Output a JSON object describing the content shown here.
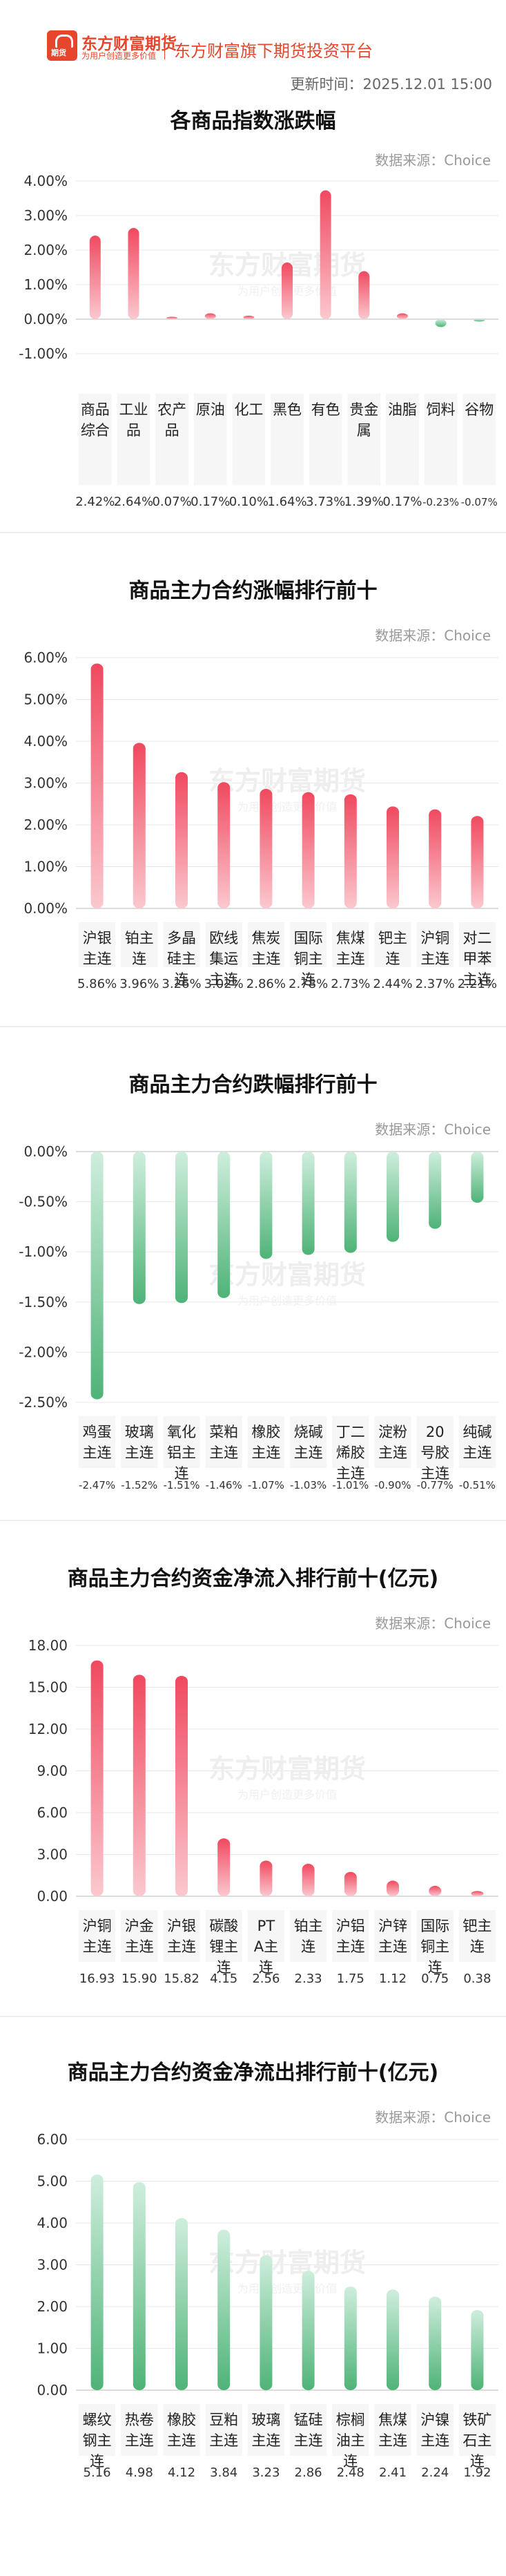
{
  "header": {
    "logo_name": "东方财富期货",
    "logo_sub": "为用户创造更多价值",
    "logo_badge": "期货",
    "platform": "东方财富旗下期货投资平台",
    "updated": "更新时间：2025.12.01 15:00"
  },
  "watermark": {
    "name": "东方财富期货",
    "sub": "为用户创造更多价值"
  },
  "colors": {
    "brand": "#e8462c",
    "up": "#f0495f",
    "down": "#4fb377",
    "grid": "#e8e8e8"
  },
  "charts": [
    {
      "title": "各商品指数涨跌幅",
      "source": "数据来源：Choice",
      "chart_data": {
        "type": "bar",
        "categories": [
          "商品综合",
          "工业品",
          "农产品",
          "原油",
          "化工",
          "黑色",
          "有色",
          "贵金属",
          "油脂",
          "饲料",
          "谷物"
        ],
        "values": [
          2.42,
          2.64,
          0.07,
          0.17,
          0.1,
          1.64,
          3.73,
          1.39,
          0.17,
          -0.23,
          -0.07
        ],
        "value_labels": [
          "2.42%",
          "2.64%",
          "0.07%",
          "0.17%",
          "0.10%",
          "1.64%",
          "3.73%",
          "1.39%",
          "0.17%",
          "-0.23%",
          "-0.07%"
        ],
        "y_ticks": [
          "4.00%",
          "3.00%",
          "2.00%",
          "1.00%",
          "0.00%",
          "-1.00%"
        ],
        "ylim": [
          -1,
          4
        ],
        "unit": "%"
      }
    },
    {
      "title": "商品主力合约涨幅排行前十",
      "source": "数据来源：Choice",
      "chart_data": {
        "type": "bar",
        "categories": [
          "沪银主连",
          "铂主连",
          "多晶硅主连",
          "欧线集运主连",
          "焦炭主连",
          "国际铜主连",
          "焦煤主连",
          "钯主连",
          "沪铜主连",
          "对二甲苯主连"
        ],
        "values": [
          5.86,
          3.96,
          3.26,
          3.02,
          2.86,
          2.78,
          2.73,
          2.44,
          2.37,
          2.21
        ],
        "value_labels": [
          "5.86%",
          "3.96%",
          "3.26%",
          "3.02%",
          "2.86%",
          "2.78%",
          "2.73%",
          "2.44%",
          "2.37%",
          "2.21%"
        ],
        "y_ticks": [
          "6.00%",
          "5.00%",
          "4.00%",
          "3.00%",
          "2.00%",
          "1.00%",
          "0.00%"
        ],
        "ylim": [
          0,
          6
        ],
        "unit": "%"
      }
    },
    {
      "title": "商品主力合约跌幅排行前十",
      "source": "数据来源：Choice",
      "chart_data": {
        "type": "bar",
        "categories": [
          "鸡蛋主连",
          "玻璃主连",
          "氧化铝主连",
          "菜粕主连",
          "橡胶主连",
          "烧碱主连",
          "丁二烯胶主连",
          "淀粉主连",
          "20号胶主连",
          "纯碱主连"
        ],
        "values": [
          -2.47,
          -1.52,
          -1.51,
          -1.46,
          -1.07,
          -1.03,
          -1.01,
          -0.9,
          -0.77,
          -0.51
        ],
        "value_labels": [
          "-2.47%",
          "-1.52%",
          "-1.51%",
          "-1.46%",
          "-1.07%",
          "-1.03%",
          "-1.01%",
          "-0.90%",
          "-0.77%",
          "-0.51%"
        ],
        "y_ticks": [
          "0.00%",
          "-0.50%",
          "-1.00%",
          "-1.50%",
          "-2.00%",
          "-2.50%"
        ],
        "ylim": [
          -2.5,
          0
        ],
        "unit": "%"
      }
    },
    {
      "title": "商品主力合约资金净流入排行前十(亿元)",
      "source": "数据来源：Choice",
      "chart_data": {
        "type": "bar",
        "categories": [
          "沪铜主连",
          "沪金主连",
          "沪银主连",
          "碳酸锂主连",
          "PTA主连",
          "铂主连",
          "沪铝主连",
          "沪锌主连",
          "国际铜主连",
          "钯主连"
        ],
        "values": [
          16.93,
          15.9,
          15.82,
          4.15,
          2.56,
          2.33,
          1.75,
          1.12,
          0.75,
          0.38
        ],
        "value_labels": [
          "16.93",
          "15.90",
          "15.82",
          "4.15",
          "2.56",
          "2.33",
          "1.75",
          "1.12",
          "0.75",
          "0.38"
        ],
        "y_ticks": [
          "18.00",
          "15.00",
          "12.00",
          "9.00",
          "6.00",
          "3.00",
          "0.00"
        ],
        "ylim": [
          0,
          18
        ],
        "unit": "亿元"
      }
    },
    {
      "title": "商品主力合约资金净流出排行前十(亿元)",
      "source": "数据来源：Choice",
      "chart_data": {
        "type": "bar",
        "categories": [
          "螺纹钢主连",
          "热卷主连",
          "橡胶主连",
          "豆粕主连",
          "玻璃主连",
          "锰硅主连",
          "棕榈油主连",
          "焦煤主连",
          "沪镍主连",
          "铁矿石主连"
        ],
        "values": [
          5.16,
          4.98,
          4.12,
          3.84,
          3.23,
          2.86,
          2.48,
          2.41,
          2.24,
          1.92
        ],
        "value_labels": [
          "5.16",
          "4.98",
          "4.12",
          "3.84",
          "3.23",
          "2.86",
          "2.48",
          "2.41",
          "2.24",
          "1.92"
        ],
        "y_ticks": [
          "6.00",
          "5.00",
          "4.00",
          "3.00",
          "2.00",
          "1.00",
          "0.00"
        ],
        "ylim": [
          0,
          6
        ],
        "unit": "亿元"
      }
    }
  ]
}
